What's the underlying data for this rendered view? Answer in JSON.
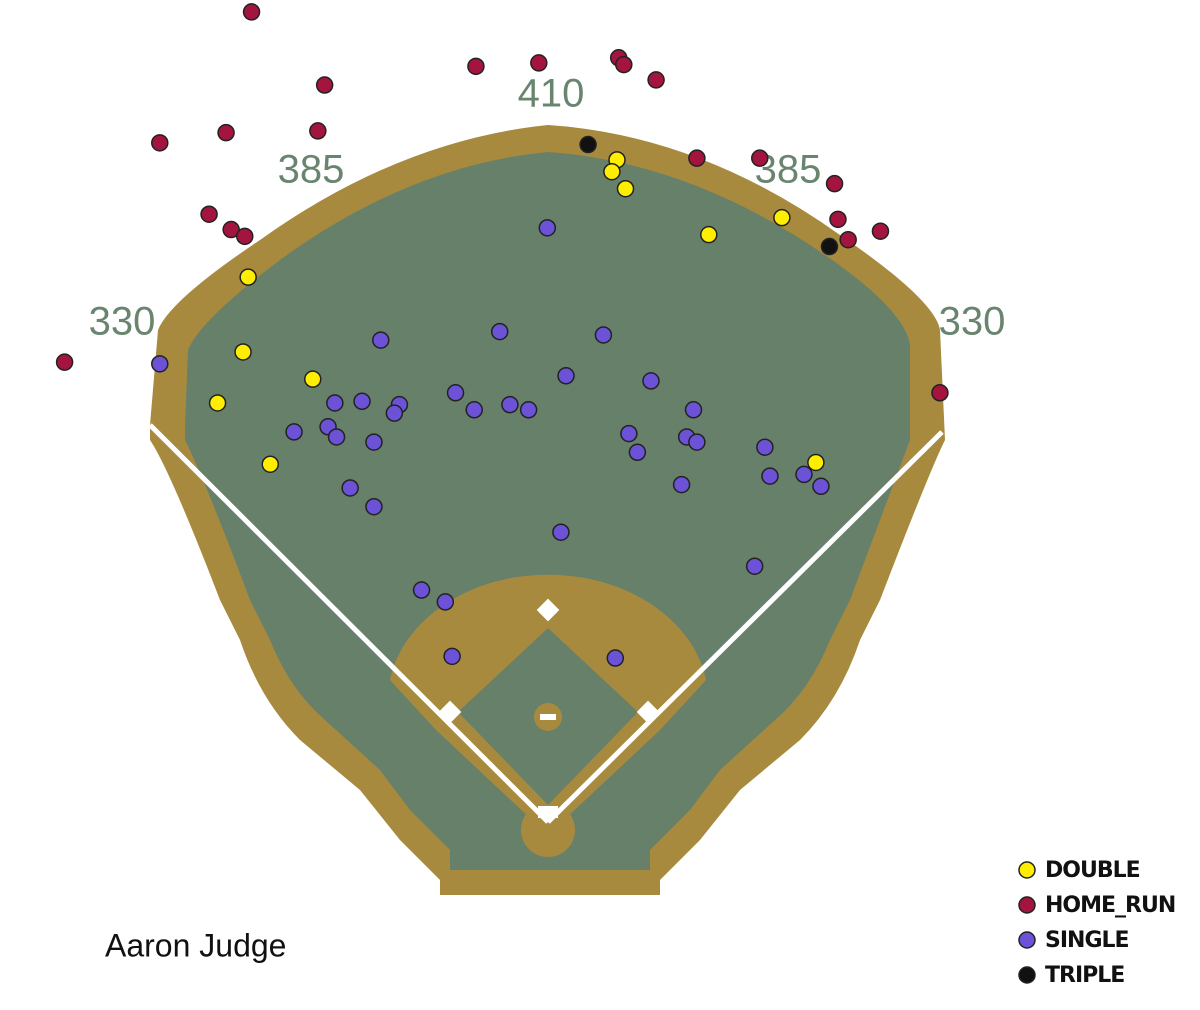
{
  "chart_data": {
    "type": "scatter",
    "title": "Aaron Judge",
    "annotations": [
      "330",
      "385",
      "410",
      "385",
      "330"
    ],
    "xlim": [
      -322,
      384
    ],
    "ylim": [
      -112,
      482
    ],
    "series": [
      {
        "name": "DOUBLE",
        "color": "#ffee00",
        "x": [
          41,
          38,
          46,
          95,
          138,
          -176,
          -179,
          -138,
          -194,
          -163,
          158
        ],
        "values": [
          388,
          381,
          371,
          344,
          354,
          319,
          275,
          259,
          245,
          209,
          210
        ]
      },
      {
        "name": "HOME_RUN",
        "color": "#a3153f",
        "x": [
          -174,
          -42,
          -5,
          42,
          45,
          64,
          -131,
          -228,
          -189,
          -135,
          -199,
          -186,
          -178,
          88,
          125,
          169,
          171,
          177,
          196,
          -284,
          231
        ],
        "values": [
          475,
          443,
          445,
          448,
          444,
          435,
          432,
          398,
          404,
          405,
          356,
          347,
          343,
          389,
          389,
          374,
          353,
          341,
          346,
          269,
          251
        ]
      },
      {
        "name": "SINGLE",
        "color": "#6b52d6",
        "x": [
          0,
          -98,
          -28,
          33,
          -228,
          11,
          61,
          -125,
          -109,
          -87,
          -90,
          -54,
          -43,
          -22,
          -11,
          86,
          -149,
          -129,
          -124,
          -102,
          48,
          53,
          82,
          88,
          128,
          131,
          151,
          161,
          79,
          -116,
          -102,
          8,
          122,
          -74,
          -60,
          -56,
          40
        ],
        "values": [
          348,
          282,
          287,
          285,
          268,
          261,
          258,
          245,
          246,
          244,
          239,
          251,
          241,
          244,
          241,
          241,
          228,
          231,
          225,
          222,
          227,
          216,
          225,
          222,
          219,
          202,
          203,
          196,
          197,
          195,
          184,
          169,
          149,
          135,
          128,
          96,
          95
        ]
      },
      {
        "name": "TRIPLE",
        "color": "#111111",
        "x": [
          24,
          166
        ],
        "values": [
          397,
          337
        ]
      }
    ]
  }
}
